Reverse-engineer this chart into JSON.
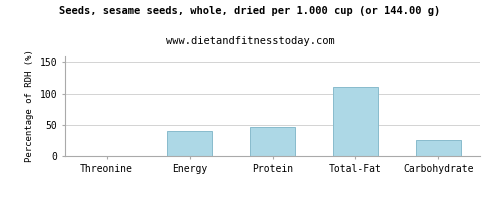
{
  "title": "Seeds, sesame seeds, whole, dried per 1.000 cup (or 144.00 g)",
  "subtitle": "www.dietandfitnesstoday.com",
  "categories": [
    "Threonine",
    "Energy",
    "Protein",
    "Total-Fat",
    "Carbohydrate"
  ],
  "values": [
    0,
    40,
    46,
    111,
    26
  ],
  "bar_color": "#add8e6",
  "bar_edge_color": "#88bbcc",
  "ylabel": "Percentage of RDH (%)",
  "ylim": [
    0,
    160
  ],
  "yticks": [
    0,
    50,
    100,
    150
  ],
  "background_color": "#ffffff",
  "grid_color": "#cccccc",
  "title_fontsize": 7.5,
  "subtitle_fontsize": 7.5,
  "ylabel_fontsize": 6.5,
  "tick_fontsize": 7,
  "bar_width": 0.55
}
